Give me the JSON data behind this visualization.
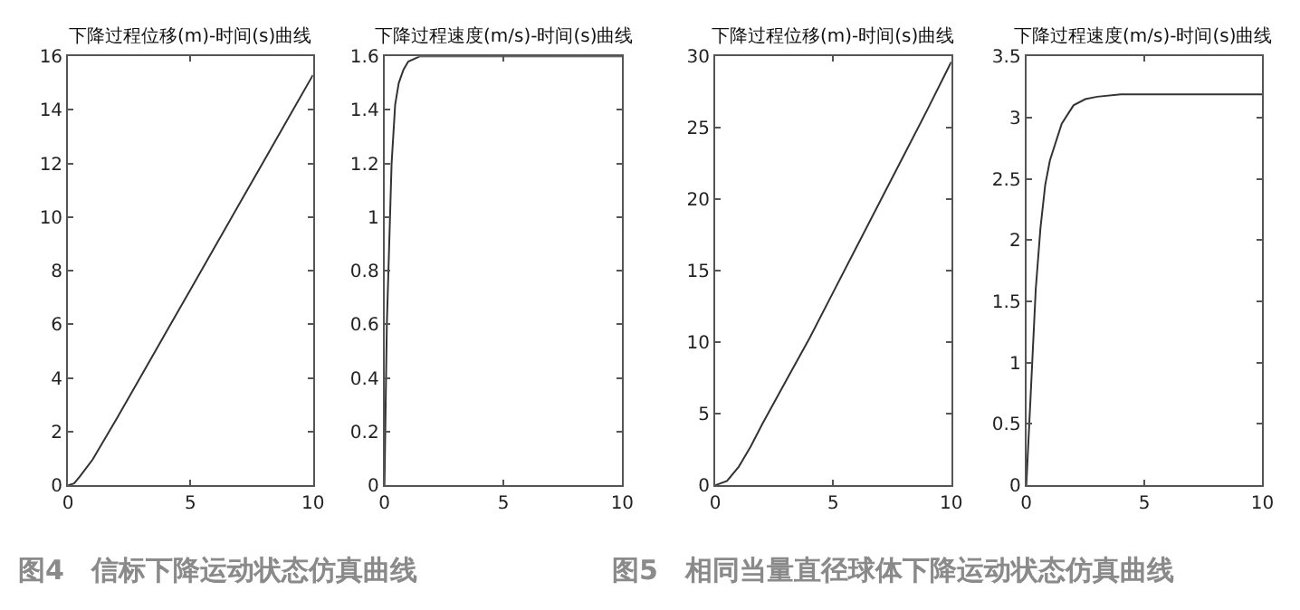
{
  "chart_data": [
    {
      "type": "line",
      "title": "下降过程位移(m)-时间(s)曲线",
      "x": [
        0,
        0.25,
        0.5,
        1,
        2,
        3,
        4,
        5,
        6,
        7,
        8,
        9,
        10
      ],
      "series": [
        {
          "color": "#333333",
          "values": [
            0,
            0.07,
            0.35,
            0.95,
            2.5,
            4.1,
            5.7,
            7.3,
            8.9,
            10.5,
            12.1,
            13.7,
            15.3
          ]
        }
      ],
      "xlim": [
        0,
        10
      ],
      "ylim": [
        0,
        16
      ],
      "xticks": [
        0,
        5,
        10
      ],
      "yticks": [
        0,
        2,
        4,
        6,
        8,
        10,
        12,
        14,
        16
      ],
      "annotations": [
        "图4　信标下降运动状态仿真曲线"
      ]
    },
    {
      "type": "line",
      "title": "下降过程速度(m/s)-时间(s)曲线",
      "x": [
        0,
        0.05,
        0.1,
        0.2,
        0.3,
        0.45,
        0.6,
        0.8,
        1,
        1.5,
        10
      ],
      "series": [
        {
          "color": "#333333",
          "values": [
            0,
            0.3,
            0.6,
            0.9,
            1.2,
            1.42,
            1.5,
            1.55,
            1.58,
            1.6,
            1.6
          ]
        }
      ],
      "xlim": [
        0,
        10
      ],
      "ylim": [
        0,
        1.6
      ],
      "xticks": [
        0,
        5,
        10
      ],
      "yticks": [
        0,
        0.2,
        0.4,
        0.6,
        0.8,
        1,
        1.2,
        1.4,
        1.6
      ]
    },
    {
      "type": "line",
      "title": "下降过程位移(m)-时间(s)曲线",
      "x": [
        0,
        0.5,
        1,
        1.5,
        2,
        3,
        4,
        5,
        6,
        7,
        8,
        9,
        10
      ],
      "series": [
        {
          "color": "#333333",
          "values": [
            0,
            0.3,
            1.3,
            2.7,
            4.3,
            7.3,
            10.3,
            13.5,
            16.7,
            19.9,
            23.1,
            26.3,
            29.6
          ]
        }
      ],
      "xlim": [
        0,
        10
      ],
      "ylim": [
        0,
        30
      ],
      "xticks": [
        0,
        5,
        10
      ],
      "yticks": [
        0,
        5,
        10,
        15,
        20,
        25,
        30
      ],
      "annotations": [
        "图5　相同当量直径球体下降运动状态仿真曲线"
      ]
    },
    {
      "type": "line",
      "title": "下降过程速度(m/s)-时间(s)曲线",
      "x": [
        0,
        0.2,
        0.4,
        0.6,
        0.8,
        1,
        1.5,
        2,
        2.5,
        3,
        4,
        10
      ],
      "series": [
        {
          "color": "#333333",
          "values": [
            0,
            0.8,
            1.6,
            2.1,
            2.45,
            2.65,
            2.95,
            3.1,
            3.15,
            3.17,
            3.19,
            3.19
          ]
        }
      ],
      "xlim": [
        0,
        10
      ],
      "ylim": [
        0,
        3.5
      ],
      "xticks": [
        0,
        5,
        10
      ],
      "yticks": [
        0,
        0.5,
        1,
        1.5,
        2,
        2.5,
        3,
        3.5
      ]
    }
  ]
}
